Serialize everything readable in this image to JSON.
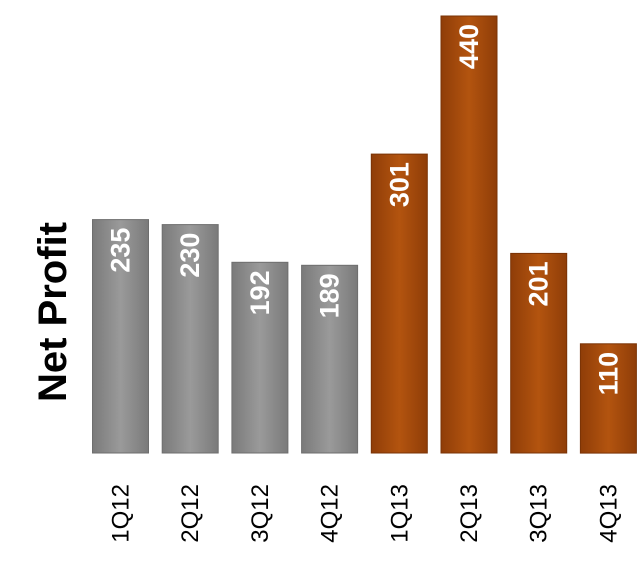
{
  "chart_data": {
    "type": "bar",
    "title": "",
    "xlabel": "",
    "ylabel": "Net Profit",
    "categories": [
      "1Q12",
      "2Q12",
      "3Q12",
      "4Q12",
      "1Q13",
      "2Q13",
      "3Q13",
      "4Q13"
    ],
    "values": [
      235,
      230,
      192,
      189,
      301,
      440,
      201,
      110
    ],
    "data_labels": [
      "235",
      "230",
      "192",
      "189",
      "301",
      "440",
      "201",
      "110"
    ],
    "ylim": [
      0,
      440
    ],
    "grid": false,
    "legend": "none",
    "colors": [
      "#8c8c8c",
      "#8c8c8c",
      "#8c8c8c",
      "#8c8c8c",
      "#a54a0e",
      "#a54a0e",
      "#a54a0e",
      "#a54a0e"
    ],
    "label_rotation": "vertical"
  }
}
